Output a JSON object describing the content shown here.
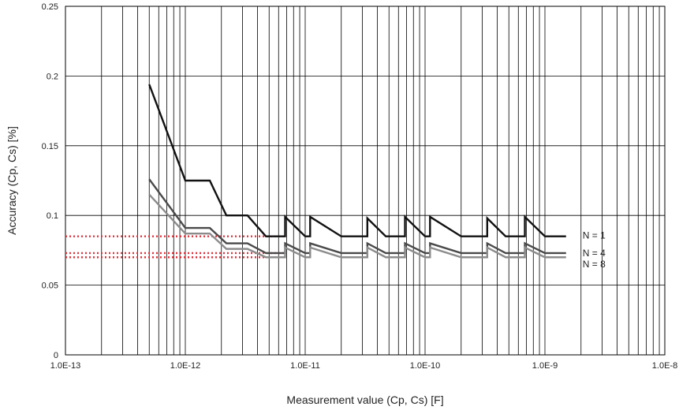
{
  "chart_data": {
    "type": "line",
    "xscale": "log",
    "xlim": [
      1e-13,
      1e-08
    ],
    "ylim": [
      0,
      0.25
    ],
    "xlabel": "Measurement value (Cp, Cs) [F]",
    "ylabel": "Accuracy (Cp, Cs) [%]",
    "grid": true,
    "x_ticks": [
      {
        "value": 1e-13,
        "label": "1.0E-13"
      },
      {
        "value": 1e-12,
        "label": "1.0E-12"
      },
      {
        "value": 1e-11,
        "label": "1.0E-11"
      },
      {
        "value": 1e-10,
        "label": "1.0E-10"
      },
      {
        "value": 1e-09,
        "label": "1.0E-9"
      },
      {
        "value": 1e-08,
        "label": "1.0E-8"
      }
    ],
    "y_ticks": [
      {
        "value": 0,
        "label": "0"
      },
      {
        "value": 0.05,
        "label": "0.05"
      },
      {
        "value": 0.1,
        "label": "0.1"
      },
      {
        "value": 0.15,
        "label": "0.15"
      },
      {
        "value": 0.2,
        "label": "0.2"
      },
      {
        "value": 0.25,
        "label": "0.25"
      }
    ],
    "series": [
      {
        "name": "N = 1",
        "color": "#111111",
        "points": [
          [
            5e-13,
            0.194
          ],
          [
            1e-12,
            0.125
          ],
          [
            1.6e-12,
            0.125
          ],
          [
            2.2e-12,
            0.1
          ],
          [
            3.3e-12,
            0.1
          ],
          [
            4.7e-12,
            0.085
          ],
          [
            6.8e-12,
            0.085
          ],
          [
            6.8e-12,
            0.099
          ],
          [
            1e-11,
            0.085
          ],
          [
            1.1e-11,
            0.085
          ],
          [
            1.1e-11,
            0.099
          ],
          [
            2e-11,
            0.085
          ],
          [
            3.3e-11,
            0.085
          ],
          [
            3.3e-11,
            0.098
          ],
          [
            4.7e-11,
            0.085
          ],
          [
            6.8e-11,
            0.085
          ],
          [
            6.8e-11,
            0.099
          ],
          [
            1e-10,
            0.085
          ],
          [
            1.1e-10,
            0.085
          ],
          [
            1.1e-10,
            0.099
          ],
          [
            2e-10,
            0.085
          ],
          [
            3.3e-10,
            0.085
          ],
          [
            3.3e-10,
            0.098
          ],
          [
            4.7e-10,
            0.085
          ],
          [
            6.8e-10,
            0.085
          ],
          [
            6.8e-10,
            0.099
          ],
          [
            1e-09,
            0.085
          ],
          [
            1.5e-09,
            0.085
          ]
        ]
      },
      {
        "name": "N = 4",
        "color": "#4a4a4a",
        "points": [
          [
            5e-13,
            0.126
          ],
          [
            1e-12,
            0.091
          ],
          [
            1.6e-12,
            0.091
          ],
          [
            2.2e-12,
            0.08
          ],
          [
            3.3e-12,
            0.08
          ],
          [
            4.7e-12,
            0.073
          ],
          [
            6.8e-12,
            0.073
          ],
          [
            6.8e-12,
            0.08
          ],
          [
            1e-11,
            0.073
          ],
          [
            1.1e-11,
            0.073
          ],
          [
            1.1e-11,
            0.08
          ],
          [
            2e-11,
            0.073
          ],
          [
            3.3e-11,
            0.073
          ],
          [
            3.3e-11,
            0.08
          ],
          [
            4.7e-11,
            0.073
          ],
          [
            6.8e-11,
            0.073
          ],
          [
            6.8e-11,
            0.08
          ],
          [
            1e-10,
            0.073
          ],
          [
            1.1e-10,
            0.073
          ],
          [
            1.1e-10,
            0.08
          ],
          [
            2e-10,
            0.073
          ],
          [
            3.3e-10,
            0.073
          ],
          [
            3.3e-10,
            0.08
          ],
          [
            4.7e-10,
            0.073
          ],
          [
            6.8e-10,
            0.073
          ],
          [
            6.8e-10,
            0.08
          ],
          [
            1e-09,
            0.073
          ],
          [
            1.5e-09,
            0.073
          ]
        ]
      },
      {
        "name": "N = 8",
        "color": "#8c8c8c",
        "points": [
          [
            5e-13,
            0.115
          ],
          [
            1e-12,
            0.087
          ],
          [
            1.6e-12,
            0.087
          ],
          [
            2.2e-12,
            0.076
          ],
          [
            3.3e-12,
            0.076
          ],
          [
            4.7e-12,
            0.07
          ],
          [
            6.8e-12,
            0.07
          ],
          [
            6.8e-12,
            0.077
          ],
          [
            1e-11,
            0.07
          ],
          [
            1.1e-11,
            0.07
          ],
          [
            1.1e-11,
            0.077
          ],
          [
            2e-11,
            0.07
          ],
          [
            3.3e-11,
            0.07
          ],
          [
            3.3e-11,
            0.077
          ],
          [
            4.7e-11,
            0.07
          ],
          [
            6.8e-11,
            0.07
          ],
          [
            6.8e-11,
            0.077
          ],
          [
            1e-10,
            0.07
          ],
          [
            1.1e-10,
            0.07
          ],
          [
            1.1e-10,
            0.077
          ],
          [
            2e-10,
            0.07
          ],
          [
            3.3e-10,
            0.07
          ],
          [
            3.3e-10,
            0.077
          ],
          [
            4.7e-10,
            0.07
          ],
          [
            6.8e-10,
            0.07
          ],
          [
            6.8e-10,
            0.077
          ],
          [
            1e-09,
            0.07
          ],
          [
            1.5e-09,
            0.07
          ]
        ]
      }
    ],
    "reference_lines": [
      {
        "y": 0.085,
        "x_from": 1e-13,
        "x_to": 6.8e-12,
        "color": "#e0303a",
        "style": "dotted"
      },
      {
        "y": 0.073,
        "x_from": 1e-13,
        "x_to": 6.8e-12,
        "color": "#e0303a",
        "style": "dotted"
      },
      {
        "y": 0.07,
        "x_from": 1e-13,
        "x_to": 6.8e-12,
        "color": "#e0303a",
        "style": "dotted"
      }
    ],
    "legend_placement": "right"
  }
}
